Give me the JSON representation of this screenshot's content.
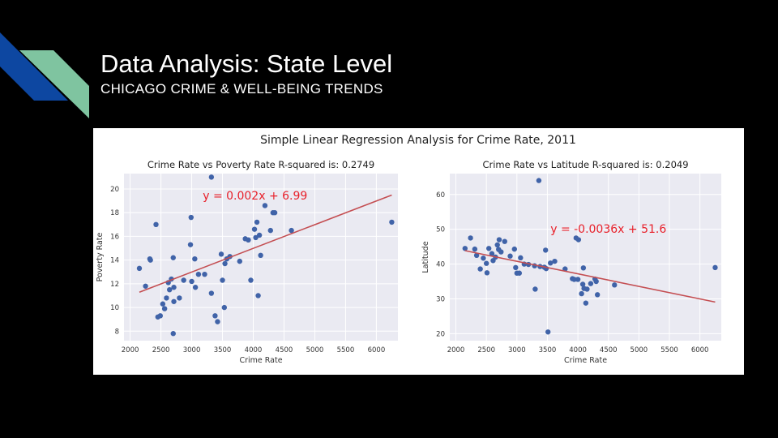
{
  "slide": {
    "title": "Data Analysis: State Level",
    "subtitle": "CHICAGO CRIME & WELL-BEING TRENDS"
  },
  "colors": {
    "accent_blue": "#0d47a1",
    "accent_green": "#7fc4a0",
    "plot_bg": "#eaeaf2",
    "point": "#4063a8",
    "fit_line": "#c44e52",
    "equation": "#e8202a"
  },
  "figure_title": "Simple Linear Regression Analysis for Crime Rate, 2011",
  "chart_data": [
    {
      "type": "scatter",
      "title": "Crime Rate vs Poverty Rate R-squared is: 0.2749",
      "xlabel": "Crime Rate",
      "ylabel": "Poverty Rate",
      "xlim": [
        1900,
        6350
      ],
      "ylim": [
        7.2,
        21.3
      ],
      "xticks": [
        2000,
        2500,
        3000,
        3500,
        4000,
        4500,
        5000,
        5500,
        6000
      ],
      "yticks": [
        8,
        10,
        12,
        14,
        16,
        18,
        20
      ],
      "grid": true,
      "regression": {
        "slope": 0.002,
        "intercept": 6.99,
        "x_range": [
          2150,
          6250
        ],
        "equation": "y = 0.002x + 6.99"
      },
      "points": [
        [
          2150,
          13.3
        ],
        [
          2250,
          11.8
        ],
        [
          2320,
          14.1
        ],
        [
          2330,
          14.0
        ],
        [
          2420,
          17.0
        ],
        [
          2450,
          9.2
        ],
        [
          2490,
          9.3
        ],
        [
          2530,
          10.3
        ],
        [
          2560,
          9.9
        ],
        [
          2590,
          10.8
        ],
        [
          2620,
          12.1
        ],
        [
          2640,
          11.5
        ],
        [
          2670,
          12.4
        ],
        [
          2700,
          14.2
        ],
        [
          2700,
          7.8
        ],
        [
          2710,
          11.7
        ],
        [
          2710,
          10.5
        ],
        [
          2800,
          10.8
        ],
        [
          2870,
          12.3
        ],
        [
          2980,
          15.3
        ],
        [
          2990,
          17.6
        ],
        [
          3000,
          12.2
        ],
        [
          3050,
          14.1
        ],
        [
          3060,
          11.7
        ],
        [
          3110,
          12.8
        ],
        [
          3210,
          12.8
        ],
        [
          3320,
          11.2
        ],
        [
          3320,
          21.0
        ],
        [
          3380,
          9.3
        ],
        [
          3420,
          8.8
        ],
        [
          3480,
          14.5
        ],
        [
          3500,
          12.3
        ],
        [
          3530,
          10.0
        ],
        [
          3540,
          13.7
        ],
        [
          3570,
          14.1
        ],
        [
          3620,
          14.3
        ],
        [
          3780,
          13.9
        ],
        [
          3870,
          15.8
        ],
        [
          3920,
          15.7
        ],
        [
          3960,
          12.3
        ],
        [
          4020,
          16.6
        ],
        [
          4040,
          15.9
        ],
        [
          4060,
          17.2
        ],
        [
          4080,
          11.0
        ],
        [
          4100,
          16.1
        ],
        [
          4120,
          14.4
        ],
        [
          4190,
          18.6
        ],
        [
          4280,
          16.5
        ],
        [
          4320,
          18.0
        ],
        [
          4350,
          18.0
        ],
        [
          4620,
          16.5
        ],
        [
          6250,
          17.2
        ]
      ]
    },
    {
      "type": "scatter",
      "title": "Crime Rate vs Latitude R-squared is: 0.2049",
      "xlabel": "Crime Rate",
      "ylabel": "Latitude",
      "xlim": [
        1900,
        6350
      ],
      "ylim": [
        18,
        66
      ],
      "xticks": [
        2000,
        2500,
        3000,
        3500,
        4000,
        4500,
        5000,
        5500,
        6000
      ],
      "yticks": [
        20,
        30,
        40,
        50,
        60
      ],
      "grid": true,
      "regression": {
        "slope": -0.0036,
        "intercept": 51.6,
        "x_range": [
          2150,
          6250
        ],
        "equation": "y = -0.0036x + 51.6"
      },
      "points": [
        [
          2150,
          44.5
        ],
        [
          2240,
          47.5
        ],
        [
          2310,
          44.3
        ],
        [
          2340,
          42.5
        ],
        [
          2400,
          38.6
        ],
        [
          2450,
          41.7
        ],
        [
          2500,
          40.2
        ],
        [
          2510,
          37.5
        ],
        [
          2540,
          44.5
        ],
        [
          2590,
          43.0
        ],
        [
          2610,
          41.0
        ],
        [
          2650,
          42.0
        ],
        [
          2680,
          45.5
        ],
        [
          2700,
          44.2
        ],
        [
          2710,
          47.0
        ],
        [
          2740,
          43.5
        ],
        [
          2800,
          46.5
        ],
        [
          2890,
          42.3
        ],
        [
          2960,
          44.3
        ],
        [
          2980,
          39.0
        ],
        [
          3000,
          37.4
        ],
        [
          3040,
          37.4
        ],
        [
          3060,
          41.8
        ],
        [
          3120,
          40.0
        ],
        [
          3190,
          39.9
        ],
        [
          3290,
          39.5
        ],
        [
          3300,
          32.8
        ],
        [
          3360,
          64.0
        ],
        [
          3380,
          39.3
        ],
        [
          3450,
          39.1
        ],
        [
          3470,
          44.0
        ],
        [
          3480,
          38.7
        ],
        [
          3510,
          20.5
        ],
        [
          3550,
          40.3
        ],
        [
          3620,
          40.8
        ],
        [
          3790,
          38.6
        ],
        [
          3910,
          35.8
        ],
        [
          3940,
          35.6
        ],
        [
          3970,
          47.5
        ],
        [
          4000,
          35.6
        ],
        [
          4010,
          47.0
        ],
        [
          4060,
          31.5
        ],
        [
          4080,
          34.2
        ],
        [
          4090,
          38.9
        ],
        [
          4100,
          33.0
        ],
        [
          4130,
          28.8
        ],
        [
          4150,
          32.8
        ],
        [
          4210,
          34.4
        ],
        [
          4280,
          35.7
        ],
        [
          4300,
          35.0
        ],
        [
          4320,
          31.2
        ],
        [
          4600,
          34.0
        ],
        [
          6250,
          39.0
        ]
      ]
    }
  ]
}
